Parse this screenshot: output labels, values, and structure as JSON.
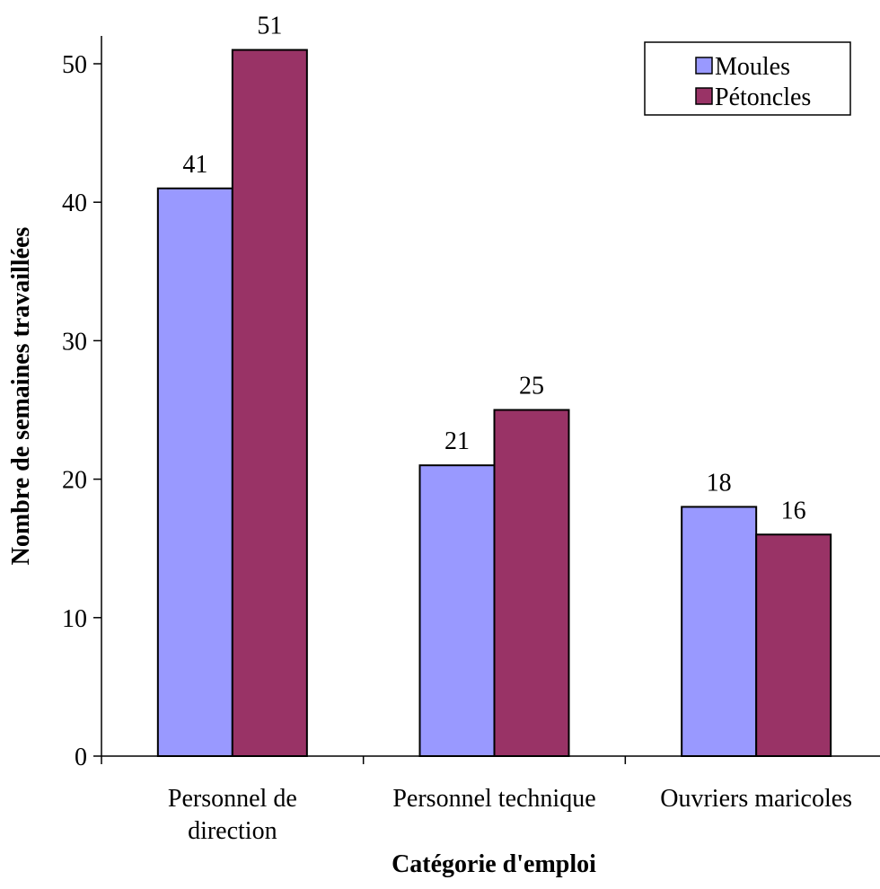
{
  "chart_data": {
    "type": "bar",
    "title": "",
    "xlabel": "Catégorie d'emploi",
    "ylabel": "Nombre de semaines travaillées",
    "categories": [
      [
        "Personnel de",
        "direction"
      ],
      [
        "Personnel technique"
      ],
      [
        "Ouvriers maricoles"
      ]
    ],
    "series": [
      {
        "name": "Moules",
        "values": [
          41,
          21,
          18
        ],
        "color": "#9999ff"
      },
      {
        "name": "Pétoncles",
        "values": [
          51,
          25,
          16
        ],
        "color": "#993366"
      }
    ],
    "ylim": [
      0,
      55
    ],
    "yticks": [
      0,
      10,
      20,
      30,
      40,
      50
    ],
    "grid": false,
    "legend_position": "top-right",
    "data_labels": true
  }
}
